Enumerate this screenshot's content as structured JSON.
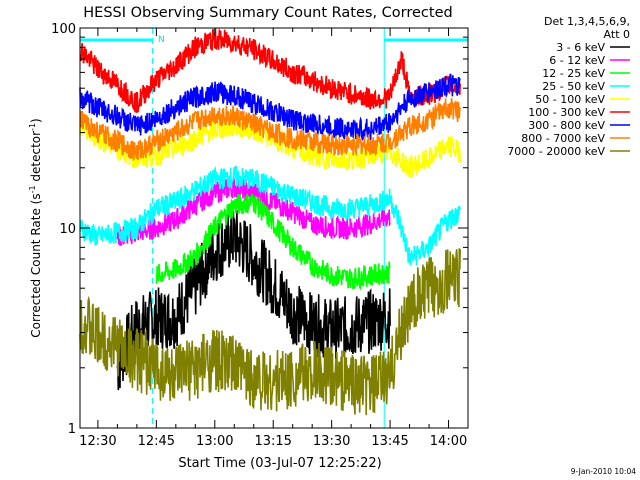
{
  "chart_data": {
    "type": "line",
    "title": "HESSI Observing Summary Count Rates, Corrected",
    "xlabel": "Start Time (03-Jul-07 12:25:22)",
    "ylabel_main": "Corrected Count Rate (s",
    "ylabel_sup1": "-1",
    "ylabel_mid": " detector",
    "ylabel_sup2": "-1",
    "ylabel_end": ")",
    "yscale": "log",
    "ylim": [
      1,
      100
    ],
    "xlim_min": [
      745.4,
      845
    ],
    "x_ticks": [
      {
        "min": 750,
        "label": "12:30"
      },
      {
        "min": 765,
        "label": "12:45"
      },
      {
        "min": 780,
        "label": "13:00"
      },
      {
        "min": 795,
        "label": "13:15"
      },
      {
        "min": 810,
        "label": "13:30"
      },
      {
        "min": 825,
        "label": "13:45"
      },
      {
        "min": 840,
        "label": "14:00"
      }
    ],
    "y_ticks": [
      {
        "value": 1,
        "label": "1"
      },
      {
        "value": 10,
        "label": "10"
      },
      {
        "value": 100,
        "label": "100"
      }
    ],
    "legend_header": [
      "Det 1,3,4,5,6,9,",
      "Att 0"
    ],
    "flag_label": "N",
    "footer_date": "9-Jan-2010 10:04",
    "night_intervals_min": [
      [
        745.4,
        764
      ],
      [
        823.5,
        845
      ]
    ],
    "series": [
      {
        "name": "3 - 6 keV",
        "color": "#000000",
        "x": [
          755,
          760,
          765,
          770,
          775,
          780,
          785,
          790,
          795,
          800,
          805,
          810,
          815,
          820,
          825
        ],
        "y": [
          2.0,
          3.2,
          3.5,
          3.6,
          5.0,
          7.6,
          9.0,
          7.0,
          5.2,
          3.8,
          3.3,
          3.1,
          3.2,
          3.4,
          3.6
        ]
      },
      {
        "name": "6 - 12 keV",
        "color": "#ff00ff",
        "x": [
          755,
          760,
          765,
          770,
          775,
          780,
          785,
          790,
          795,
          800,
          805,
          810,
          815,
          820,
          825
        ],
        "y": [
          9.0,
          9.5,
          10.0,
          11.0,
          13.0,
          15.0,
          16.0,
          15.0,
          13.5,
          12.0,
          10.5,
          10.0,
          10.0,
          10.5,
          11.5
        ]
      },
      {
        "name": "12 - 25 keV",
        "color": "#00ff00",
        "x": [
          765,
          770,
          775,
          780,
          785,
          790,
          795,
          800,
          805,
          810,
          815,
          820,
          825
        ],
        "y": [
          5.8,
          6.2,
          7.2,
          10.0,
          13.0,
          13.5,
          10.5,
          8.0,
          6.5,
          5.8,
          5.6,
          5.8,
          6.0
        ]
      },
      {
        "name": "25 - 50 keV",
        "color": "#00ffff",
        "x": [
          745.4,
          750,
          755,
          760,
          765,
          770,
          775,
          780,
          785,
          790,
          795,
          800,
          805,
          810,
          815,
          820,
          825,
          830,
          835,
          840,
          843
        ],
        "y": [
          10.0,
          9.0,
          9.5,
          10.0,
          12.5,
          13.5,
          15.5,
          17.5,
          18.0,
          17.5,
          16.0,
          14.5,
          13.5,
          12.5,
          12.5,
          13.0,
          14.0,
          7.0,
          8.0,
          11.0,
          12.0
        ]
      },
      {
        "name": "50 - 100 keV",
        "color": "#ffff00",
        "x": [
          745.4,
          750,
          755,
          760,
          765,
          770,
          775,
          780,
          785,
          790,
          795,
          800,
          805,
          810,
          815,
          820,
          825,
          830,
          835,
          840,
          843
        ],
        "y": [
          32.0,
          28.0,
          25.0,
          22.0,
          23.0,
          25.0,
          28.0,
          31.0,
          32.0,
          31.0,
          28.0,
          25.0,
          23.0,
          22.0,
          22.0,
          23.0,
          24.0,
          20.0,
          22.0,
          26.0,
          24.0
        ]
      },
      {
        "name": "100 - 300 keV",
        "color": "#ff0000",
        "x": [
          745.4,
          750,
          755,
          760,
          765,
          770,
          775,
          780,
          785,
          790,
          795,
          800,
          805,
          810,
          815,
          820,
          825,
          828,
          830,
          835,
          840,
          843
        ],
        "y": [
          78.0,
          62.0,
          52.0,
          42.0,
          55.0,
          65.0,
          80.0,
          88.0,
          85.0,
          78.0,
          68.0,
          60.0,
          55.0,
          50.0,
          47.0,
          44.0,
          45.0,
          70.0,
          45.0,
          46.0,
          52.0,
          50.0
        ]
      },
      {
        "name": "300 - 800 keV",
        "color": "#0000ff",
        "x": [
          745.4,
          750,
          755,
          760,
          765,
          770,
          775,
          780,
          785,
          790,
          795,
          800,
          805,
          810,
          815,
          820,
          825,
          830,
          835,
          840,
          843
        ],
        "y": [
          45.0,
          40.0,
          36.0,
          32.0,
          35.0,
          40.0,
          45.0,
          48.0,
          46.0,
          42.0,
          38.0,
          35.0,
          33.0,
          32.0,
          31.0,
          31.0,
          34.0,
          44.0,
          48.0,
          52.0,
          50.0
        ]
      },
      {
        "name": "800 - 7000 keV",
        "color": "#ff8000",
        "x": [
          745.4,
          750,
          755,
          760,
          765,
          770,
          775,
          780,
          785,
          790,
          795,
          800,
          805,
          810,
          815,
          820,
          825,
          830,
          835,
          840,
          843
        ],
        "y": [
          35.0,
          30.0,
          27.0,
          24.0,
          27.0,
          30.0,
          34.0,
          37.0,
          36.0,
          33.0,
          30.0,
          28.0,
          27.0,
          26.0,
          26.0,
          26.0,
          27.0,
          32.0,
          35.0,
          40.0,
          38.0
        ]
      },
      {
        "name": "7000 - 20000 keV",
        "color": "#808000",
        "x": [
          745.4,
          750,
          755,
          760,
          765,
          770,
          775,
          780,
          785,
          790,
          795,
          800,
          805,
          810,
          815,
          820,
          825,
          830,
          835,
          840,
          843
        ],
        "y": [
          3.5,
          2.8,
          2.6,
          2.2,
          2.0,
          1.8,
          2.0,
          2.2,
          2.0,
          1.8,
          1.7,
          1.8,
          1.9,
          1.8,
          1.7,
          1.6,
          1.8,
          4.0,
          5.0,
          5.5,
          5.5
        ]
      }
    ]
  }
}
